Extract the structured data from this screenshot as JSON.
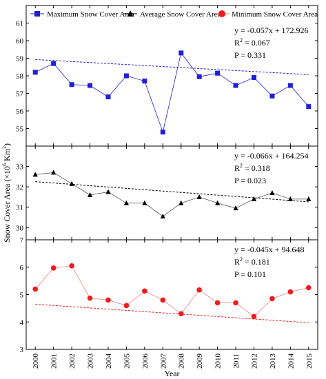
{
  "chart_data": {
    "type": "line",
    "xlabel": "Year",
    "ylabel": "Snow Cover Area (×10",
    "ylabel_exp": "6",
    "ylabel_tail": " Km",
    "ylabel_exp2": "2",
    "ylabel_close": ")",
    "x": [
      2000,
      2001,
      2002,
      2003,
      2004,
      2005,
      2006,
      2007,
      2008,
      2009,
      2010,
      2011,
      2012,
      2013,
      2014,
      2015
    ],
    "x_tick_labels": [
      "2000",
      "2001",
      "2002",
      "2003",
      "2004",
      "2005",
      "2006",
      "2007",
      "2008",
      "2009",
      "2010",
      "2011",
      "2012",
      "2013",
      "2014",
      "2015"
    ],
    "legend": [
      {
        "name": "Maximum Snow Cover Area",
        "color": "#1f1fd6",
        "marker": "square"
      },
      {
        "name": "Average Snow Cover Area",
        "color": "#000000",
        "marker": "triangle"
      },
      {
        "name": "Minimum Snow Cover Area",
        "color": "#ee1c1c",
        "marker": "circle"
      }
    ],
    "panels": [
      {
        "series_name": "Maximum Snow Cover Area",
        "color": "#1f1fd6",
        "trend_color": "#1f1fd6",
        "marker": "square",
        "ylim": [
          54,
          62
        ],
        "yticks": [
          55,
          56,
          57,
          58,
          59,
          60,
          61
        ],
        "values": [
          58.2,
          58.7,
          57.5,
          57.45,
          56.8,
          58.0,
          57.7,
          54.8,
          59.3,
          57.95,
          58.15,
          57.45,
          57.9,
          56.85,
          57.45,
          56.25
        ],
        "trend": {
          "slope": -0.057,
          "intercept": 172.926
        },
        "eq_line": "y = -0.057x + 172.926",
        "r2_label": "R",
        "r2_exp": "2",
        "r2_value": " = 0.067",
        "p_line": "P = 0.331"
      },
      {
        "series_name": "Average Snow Cover Area",
        "color": "#000000",
        "trend_color": "#000000",
        "marker": "triangle",
        "ylim": [
          29.4,
          34.0
        ],
        "yticks": [
          30,
          31,
          32,
          33
        ],
        "values": [
          32.6,
          32.7,
          32.15,
          31.6,
          31.75,
          31.2,
          31.2,
          30.55,
          31.2,
          31.5,
          31.2,
          30.95,
          31.4,
          31.7,
          31.4,
          31.4
        ],
        "trend": {
          "slope": -0.066,
          "intercept": 164.254
        },
        "eq_line": "y = -0.066x + 164.254",
        "r2_label": "R",
        "r2_exp": "2",
        "r2_value": " = 0.318",
        "p_line": "P = 0.023"
      },
      {
        "series_name": "Minimum Snow Cover Area",
        "color": "#ee1c1c",
        "trend_color": "#ee1c1c",
        "marker": "circle",
        "ylim": [
          3,
          7
        ],
        "yticks": [
          3,
          4,
          5,
          6,
          7
        ],
        "values": [
          5.2,
          5.97,
          6.05,
          4.87,
          4.8,
          4.6,
          5.13,
          4.8,
          4.3,
          5.17,
          4.7,
          4.7,
          4.2,
          4.85,
          5.1,
          5.25
        ],
        "trend": {
          "slope": -0.045,
          "intercept": 94.648
        },
        "eq_line": "y = -0.045x + 94.648",
        "r2_label": "R",
        "r2_exp": "2",
        "r2_value": " = 0.181",
        "p_line": "P = 0.101"
      }
    ]
  }
}
